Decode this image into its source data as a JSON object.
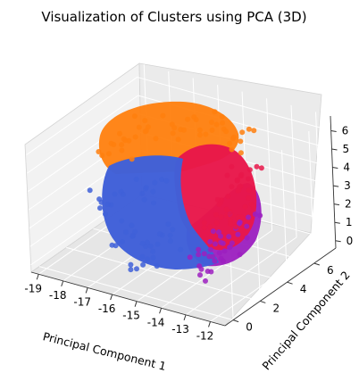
{
  "chart_data": {
    "type": "scatter",
    "projection": "3d",
    "title": "Visualization of Clusters using PCA (3D)",
    "xlabel": "Principal Component 1",
    "ylabel": "Principal Component 2",
    "zlabel": "",
    "xlim": [
      -19.3,
      -11.4
    ],
    "ylim": [
      -0.6,
      7.6
    ],
    "zlim": [
      -0.4,
      6.8
    ],
    "xticks": [
      "-19",
      "-18",
      "-17",
      "-16",
      "-15",
      "-14",
      "-13",
      "-12"
    ],
    "yticks": [
      "0",
      "2",
      "4",
      "6"
    ],
    "zticks": [
      "0",
      "1",
      "2",
      "3",
      "4",
      "5",
      "6"
    ],
    "grid": true,
    "legend": "none",
    "series": [
      {
        "color": "#ff7f0e",
        "points": [
          [
            -17.5,
            4.5,
            5.3
          ],
          [
            -16.2,
            5.2,
            5.7
          ],
          [
            -15.0,
            5.5,
            6.0
          ],
          [
            -14.2,
            5.8,
            5.5
          ],
          [
            -18.0,
            3.5,
            4.8
          ]
        ]
      },
      {
        "color": "#9c1fc0",
        "points": [
          [
            -12.8,
            2.0,
            2.0
          ],
          [
            -13.2,
            1.5,
            1.0
          ],
          [
            -13.6,
            2.6,
            1.5
          ],
          [
            -12.6,
            3.2,
            2.8
          ]
        ]
      },
      {
        "color": "#e8174a",
        "points": [
          [
            -13.5,
            4.0,
            3.8
          ],
          [
            -13.0,
            3.5,
            3.0
          ],
          [
            -14.0,
            3.8,
            2.2
          ],
          [
            -13.2,
            4.5,
            4.5
          ]
        ]
      },
      {
        "color": "#4060d8",
        "points": [
          [
            -16.5,
            1.5,
            1.5
          ],
          [
            -17.5,
            2.0,
            2.8
          ],
          [
            -15.5,
            1.0,
            0.8
          ],
          [
            -16.0,
            2.5,
            3.8
          ],
          [
            -15.0,
            1.5,
            2.0
          ]
        ]
      }
    ]
  }
}
